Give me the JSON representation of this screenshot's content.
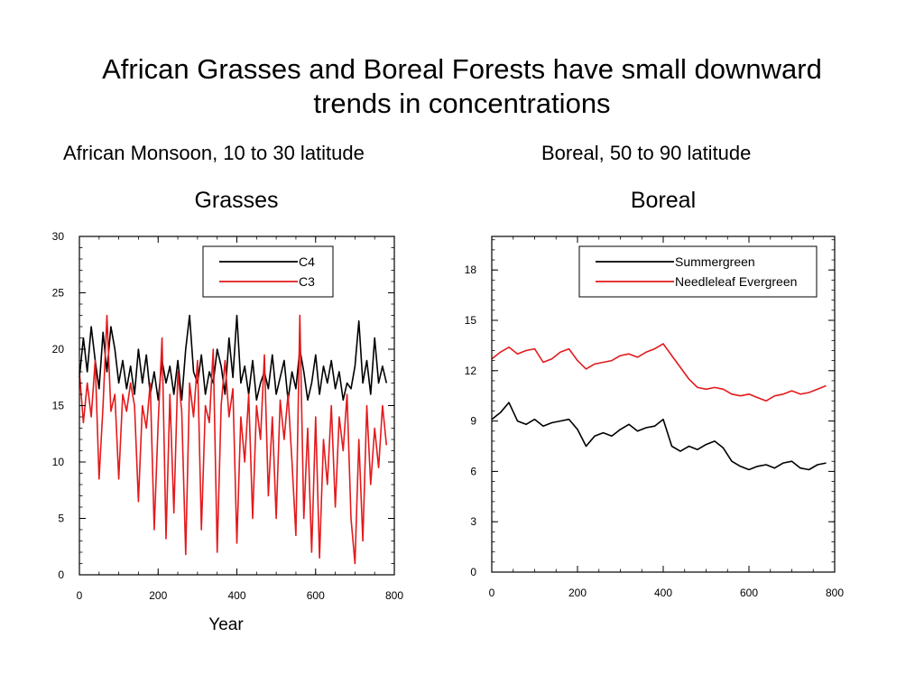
{
  "slide": {
    "title_line1": "African Grasses and Boreal Forests have small downward",
    "title_line2": "trends in concentrations",
    "subtitle_left": "African Monsoon, 10 to 30 latitude",
    "subtitle_right": "Boreal, 50 to 90 latitude"
  },
  "chart_data": [
    {
      "type": "line",
      "title": "Grasses",
      "xlabel": "Year",
      "ylabel": "",
      "xlim": [
        0,
        800
      ],
      "ylim": [
        0,
        30
      ],
      "xticks": [
        0,
        200,
        400,
        600,
        800
      ],
      "yticks": [
        0,
        5,
        10,
        15,
        20,
        25,
        30
      ],
      "legend": "top-right",
      "series": [
        {
          "name": "C4",
          "color": "#000000",
          "x": [
            0,
            10,
            20,
            30,
            40,
            50,
            60,
            70,
            80,
            90,
            100,
            110,
            120,
            130,
            140,
            150,
            160,
            170,
            180,
            190,
            200,
            210,
            220,
            230,
            240,
            250,
            260,
            270,
            280,
            290,
            300,
            310,
            320,
            330,
            340,
            350,
            360,
            370,
            380,
            390,
            400,
            410,
            420,
            430,
            440,
            450,
            460,
            470,
            480,
            490,
            500,
            510,
            520,
            530,
            540,
            550,
            560,
            570,
            580,
            590,
            600,
            610,
            620,
            630,
            640,
            650,
            660,
            670,
            680,
            690,
            700,
            710,
            720,
            730,
            740,
            750,
            760,
            770,
            780
          ],
          "values": [
            17.5,
            21,
            18,
            22,
            19,
            16.5,
            21.5,
            18,
            22,
            20,
            17,
            19,
            16.5,
            18.5,
            16,
            20,
            17,
            19.5,
            16,
            18,
            15.5,
            19,
            17,
            18.5,
            16,
            19,
            15.5,
            20,
            23,
            18,
            17,
            19.5,
            16,
            18,
            17,
            20,
            18.5,
            16,
            21,
            17.5,
            23,
            17,
            18.5,
            16,
            19,
            15.5,
            17,
            18,
            16.5,
            19.5,
            16,
            17.5,
            19,
            15.5,
            18,
            16.5,
            20,
            18,
            15.5,
            17,
            19.5,
            16,
            18.5,
            17,
            19,
            16.5,
            18,
            15.5,
            17,
            16.5,
            18.5,
            22.5,
            17,
            19,
            16,
            21,
            17,
            18.5,
            17
          ]
        },
        {
          "name": "C3",
          "color": "#e31a1c",
          "x": [
            0,
            10,
            20,
            30,
            40,
            50,
            60,
            70,
            80,
            90,
            100,
            110,
            120,
            130,
            140,
            150,
            160,
            170,
            180,
            190,
            200,
            210,
            220,
            230,
            240,
            250,
            260,
            270,
            280,
            290,
            300,
            310,
            320,
            330,
            340,
            350,
            360,
            370,
            380,
            390,
            400,
            410,
            420,
            430,
            440,
            450,
            460,
            470,
            480,
            490,
            500,
            510,
            520,
            530,
            540,
            550,
            560,
            570,
            580,
            590,
            600,
            610,
            620,
            630,
            640,
            650,
            660,
            670,
            680,
            690,
            700,
            710,
            720,
            730,
            740,
            750,
            760,
            770,
            780
          ],
          "values": [
            18,
            13.5,
            17,
            14,
            19,
            8.5,
            15,
            23,
            14.5,
            16,
            8.5,
            16,
            14.5,
            17,
            15,
            6.5,
            15,
            13,
            17,
            4,
            13.5,
            21,
            3.2,
            16,
            5.5,
            18,
            14.5,
            1.8,
            17,
            14,
            19,
            4,
            15,
            13.5,
            20,
            2,
            15,
            19,
            14,
            16.5,
            2.8,
            14,
            10,
            16,
            5,
            15,
            12,
            19.5,
            7,
            14,
            5,
            15.5,
            12,
            16,
            10,
            3.5,
            23,
            5,
            13,
            2,
            14,
            1.5,
            12,
            8,
            15,
            6,
            14,
            11,
            16,
            5,
            1,
            12,
            3,
            15,
            8,
            13,
            9.5,
            15,
            11.5
          ]
        }
      ]
    },
    {
      "type": "line",
      "title": "Boreal",
      "xlabel": "",
      "ylabel": "",
      "xlim": [
        0,
        800
      ],
      "ylim": [
        0,
        20
      ],
      "xticks": [
        0,
        200,
        400,
        600,
        800
      ],
      "yticks": [
        0,
        3,
        6,
        9,
        12,
        15,
        18
      ],
      "legend": "top-right",
      "series": [
        {
          "name": "Summergreen",
          "color": "#000000",
          "x": [
            0,
            20,
            40,
            60,
            80,
            100,
            120,
            140,
            160,
            180,
            200,
            220,
            240,
            260,
            280,
            300,
            320,
            340,
            360,
            380,
            400,
            420,
            440,
            460,
            480,
            500,
            520,
            540,
            560,
            580,
            600,
            620,
            640,
            660,
            680,
            700,
            720,
            740,
            760,
            780
          ],
          "values": [
            9.1,
            9.5,
            10.1,
            9.0,
            8.8,
            9.1,
            8.7,
            8.9,
            9.0,
            9.1,
            8.5,
            7.5,
            8.1,
            8.3,
            8.1,
            8.5,
            8.8,
            8.4,
            8.6,
            8.7,
            9.1,
            7.5,
            7.2,
            7.5,
            7.3,
            7.6,
            7.8,
            7.4,
            6.6,
            6.3,
            6.1,
            6.3,
            6.4,
            6.2,
            6.5,
            6.6,
            6.2,
            6.1,
            6.4,
            6.5
          ]
        },
        {
          "name": "Needleleaf Evergreen",
          "color": "#e31a1c",
          "x": [
            0,
            20,
            40,
            60,
            80,
            100,
            120,
            140,
            160,
            180,
            200,
            220,
            240,
            260,
            280,
            300,
            320,
            340,
            360,
            380,
            400,
            420,
            440,
            460,
            480,
            500,
            520,
            540,
            560,
            580,
            600,
            620,
            640,
            660,
            680,
            700,
            720,
            740,
            760,
            780
          ],
          "values": [
            12.7,
            13.1,
            13.4,
            13.0,
            13.2,
            13.3,
            12.5,
            12.7,
            13.1,
            13.3,
            12.6,
            12.1,
            12.4,
            12.5,
            12.6,
            12.9,
            13.0,
            12.8,
            13.1,
            13.3,
            13.6,
            12.9,
            12.2,
            11.5,
            11.0,
            10.9,
            11.0,
            10.9,
            10.6,
            10.5,
            10.6,
            10.4,
            10.2,
            10.5,
            10.6,
            10.8,
            10.6,
            10.7,
            10.9,
            11.1
          ]
        }
      ]
    }
  ]
}
